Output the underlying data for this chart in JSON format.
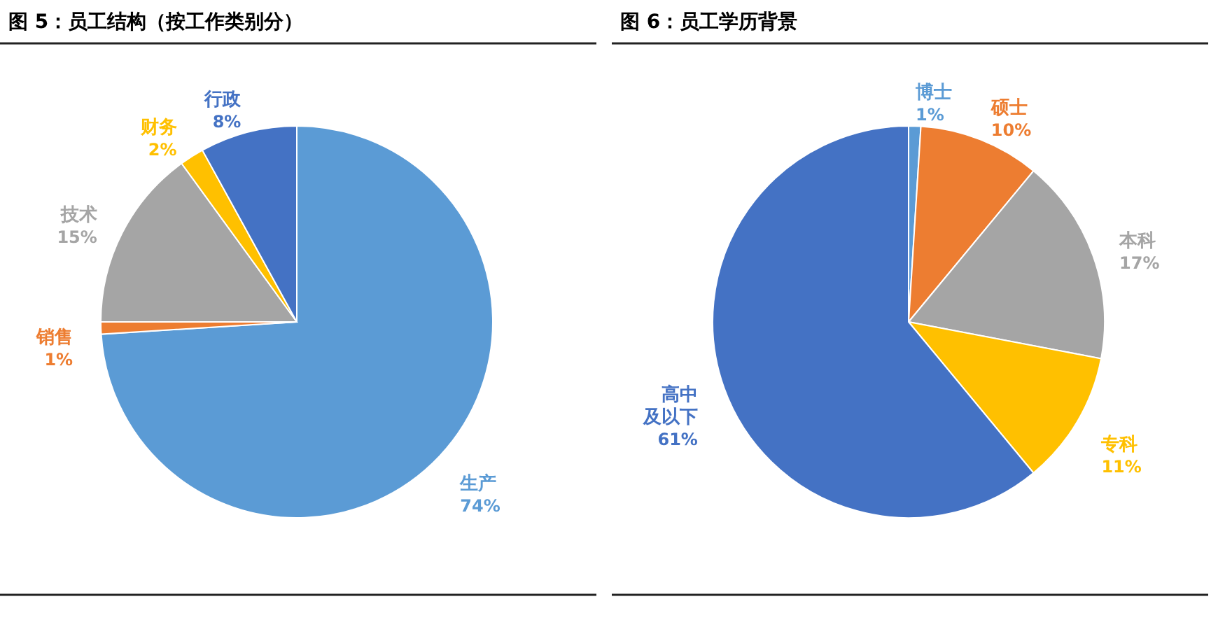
{
  "chart_data": [
    {
      "type": "pie",
      "title": "图 5：员工结构（按工作类别分）",
      "categories": [
        "生产",
        "销售",
        "技术",
        "财务",
        "行政"
      ],
      "values": [
        74,
        1,
        15,
        2,
        8
      ],
      "colors": [
        "#5b9bd5",
        "#ed7d31",
        "#a5a5a5",
        "#ffc000",
        "#4472c4"
      ],
      "value_labels": [
        "74%",
        "1%",
        "15%",
        "2%",
        "8%"
      ]
    },
    {
      "type": "pie",
      "title": "图 6：员工学历背景",
      "categories": [
        "博士",
        "硕士",
        "本科",
        "专科",
        "高中及以下"
      ],
      "values": [
        1,
        10,
        17,
        11,
        61
      ],
      "colors": [
        "#5b9bd5",
        "#ed7d31",
        "#a5a5a5",
        "#ffc000",
        "#4472c4"
      ],
      "value_labels": [
        "1%",
        "10%",
        "17%",
        "11%",
        "61%"
      ]
    }
  ]
}
